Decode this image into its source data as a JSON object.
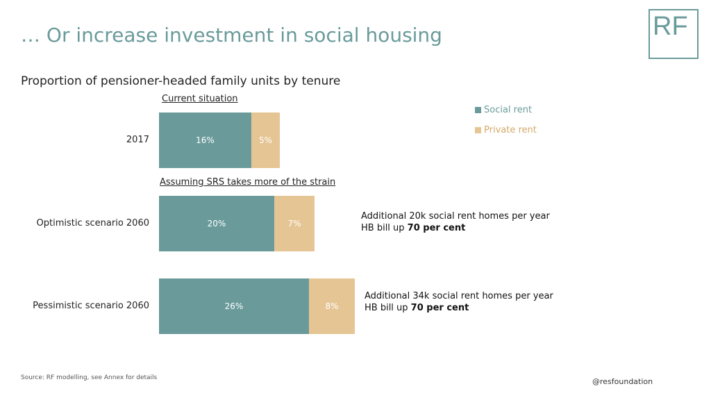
{
  "slide": {
    "title": "… Or increase investment in social housing",
    "logo_text": "RF",
    "source": "Source: RF modelling, see Annex for details",
    "handle": "@resfoundation"
  },
  "chart_data": {
    "type": "bar",
    "orientation": "horizontal",
    "stacked": true,
    "title": "Proportion of pensioner-headed family units by tenure",
    "section_labels": [
      "Current situation",
      "Assuming SRS takes more of the strain"
    ],
    "categories": [
      "2017",
      "Optimistic scenario 2060",
      "Pessimistic scenario 2060"
    ],
    "series": [
      {
        "name": "Social rent",
        "color": "#6a9a9a",
        "values": [
          16,
          20,
          26
        ],
        "labels": [
          "16%",
          "20%",
          "26%"
        ]
      },
      {
        "name": "Private rent",
        "color": "#e6c594",
        "values": [
          5,
          7,
          8
        ],
        "labels": [
          "5%",
          "7%",
          "8%"
        ]
      }
    ],
    "legend_position": "right",
    "annotations": [
      {
        "category": "Optimistic scenario 2060",
        "line1": "Additional 20k social rent homes per year",
        "line2_prefix": "HB bill up ",
        "line2_bold": "70 per cent"
      },
      {
        "category": "Pessimistic scenario 2060",
        "line1": "Additional 34k social rent homes per year",
        "line2_prefix": "HB bill up ",
        "line2_bold": "70 per cent"
      }
    ]
  }
}
